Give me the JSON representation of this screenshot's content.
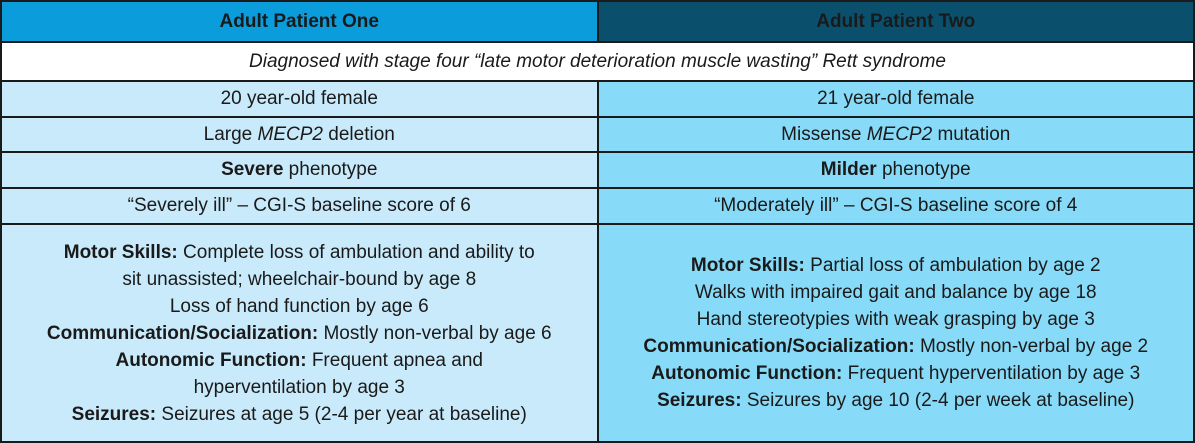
{
  "colors": {
    "header_left_bg": "#0a9cdb",
    "header_right_bg": "#0a506d",
    "header_text": "#ffffff",
    "cell_left_bg": "#c9eafb",
    "cell_right_bg": "#87dbf8",
    "border": "#1a1a1a",
    "body_text": "#1a1a1a"
  },
  "table": {
    "headers": {
      "left": "Adult Patient One",
      "right": "Adult Patient Two"
    },
    "diagnosis": "Diagnosed with stage four “late motor deterioration muscle wasting” Rett syndrome",
    "rows": {
      "age": {
        "left": [
          {
            "t": "20 year-old female"
          }
        ],
        "right": [
          {
            "t": "21 year-old female"
          }
        ]
      },
      "mutation": {
        "left": [
          {
            "t": "Large "
          },
          {
            "t": "MECP2",
            "i": true
          },
          {
            "t": " deletion"
          }
        ],
        "right": [
          {
            "t": "Missense "
          },
          {
            "t": "MECP2",
            "i": true
          },
          {
            "t": " mutation"
          }
        ]
      },
      "phenotype": {
        "left": [
          {
            "t": "Severe",
            "b": true
          },
          {
            "t": " phenotype"
          }
        ],
        "right": [
          {
            "t": "Milder",
            "b": true
          },
          {
            "t": " phenotype"
          }
        ]
      },
      "cgi": {
        "left": [
          {
            "t": "“Severely ill” – CGI-S baseline score of 6"
          }
        ],
        "right": [
          {
            "t": "“Moderately ill” – CGI-S baseline score of 4"
          }
        ]
      }
    },
    "details": {
      "left": [
        [
          {
            "t": "Motor Skills:",
            "b": true
          },
          {
            "t": " Complete loss of ambulation and ability to"
          }
        ],
        [
          {
            "t": "sit unassisted; wheelchair-bound by age 8"
          }
        ],
        [
          {
            "t": "Loss of hand function by age 6"
          }
        ],
        [
          {
            "t": "Communication/Socialization:",
            "b": true
          },
          {
            "t": " Mostly non-verbal by age 6"
          }
        ],
        [
          {
            "t": "Autonomic Function:",
            "b": true
          },
          {
            "t": " Frequent apnea and"
          }
        ],
        [
          {
            "t": "hyperventilation by age 3"
          }
        ],
        [
          {
            "t": "Seizures:",
            "b": true
          },
          {
            "t": " Seizures at age 5 (2-4 per year at baseline)"
          }
        ]
      ],
      "right": [
        [
          {
            "t": "Motor Skills:",
            "b": true
          },
          {
            "t": " Partial loss of ambulation by age 2"
          }
        ],
        [
          {
            "t": "Walks with impaired gait and balance by age 18"
          }
        ],
        [
          {
            "t": "Hand stereotypies with weak grasping by age 3"
          }
        ],
        [
          {
            "t": "Communication/Socialization:",
            "b": true
          },
          {
            "t": " Mostly non-verbal by age 2"
          }
        ],
        [
          {
            "t": "Autonomic Function:",
            "b": true
          },
          {
            "t": " Frequent hyperventilation by age 3"
          }
        ],
        [
          {
            "t": "Seizures:",
            "b": true
          },
          {
            "t": " Seizures by age 10 (2-4 per week at baseline)"
          }
        ]
      ]
    }
  }
}
